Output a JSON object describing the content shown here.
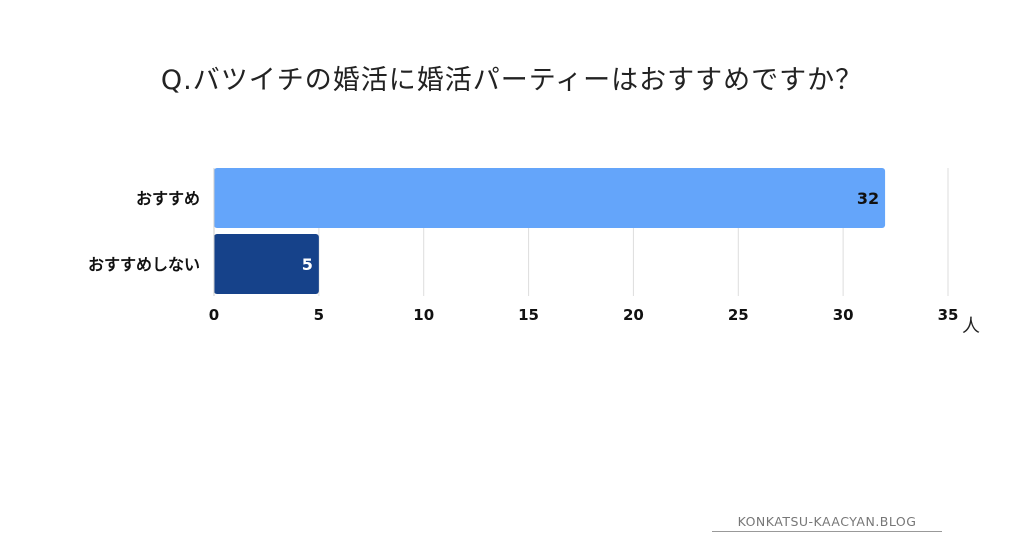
{
  "chart_data": {
    "type": "bar",
    "orientation": "horizontal",
    "title": "Q.バツイチの婚活に婚活パーティーはおすすめですか？",
    "categories": [
      "おすすめ",
      "おすすめしない"
    ],
    "values": [
      32,
      5
    ],
    "xlim": [
      0,
      35
    ],
    "xticks": [
      0,
      5,
      10,
      15,
      20,
      25,
      30,
      35
    ],
    "xunit": "人",
    "grid": true,
    "colors": [
      "#64a5fa",
      "#16428a"
    ],
    "label_colors": [
      "#111111",
      "#ffffff"
    ]
  },
  "footer": {
    "text": "KONKATSU-KAACYAN.BLOG"
  }
}
